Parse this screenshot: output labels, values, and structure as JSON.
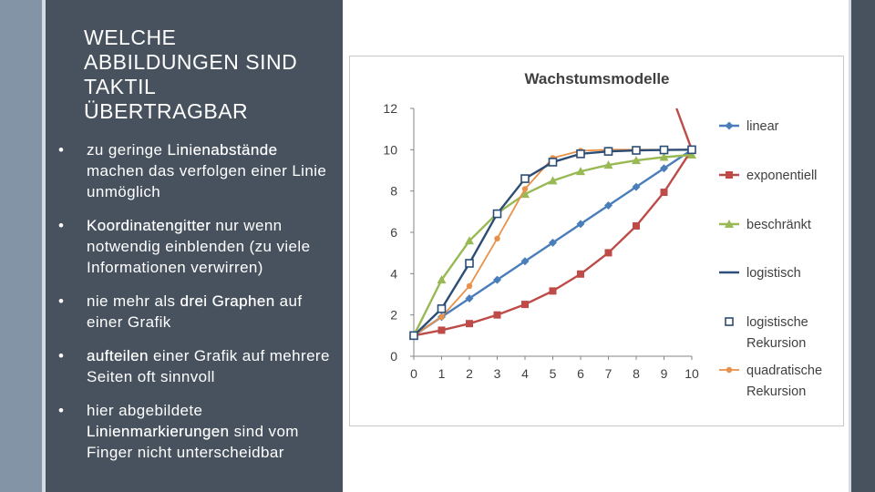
{
  "slide": {
    "title_lines": [
      "WELCHE",
      "ABBILDUNGEN SIND",
      "TAKTIL",
      "ÜBERTRAGBAR"
    ],
    "bullet_symbol": "•",
    "bullets": [
      {
        "pre": "zu geringe ",
        "bold": "Linienabstände",
        "post": " machen das verfolgen einer Linie unmöglich"
      },
      {
        "pre": "",
        "bold": "Koordinatengitter",
        "post": " nur wenn notwendig einblenden (zu viele Informationen verwirren)"
      },
      {
        "pre": "nie mehr als ",
        "bold": "drei Graphen",
        "post": " auf einer Grafik"
      },
      {
        "pre": "",
        "bold": "aufteilen",
        "post": " einer Grafik auf mehrere Seiten oft sinnvoll"
      },
      {
        "pre": "hier abgebildete ",
        "bold": "Linienmarkierungen",
        "post": " sind vom Finger nicht unterscheidbar"
      }
    ]
  },
  "chart_data": {
    "type": "line",
    "title": "Wachstumsmodelle",
    "xlabel": "",
    "ylabel": "",
    "x": [
      0,
      1,
      2,
      3,
      4,
      5,
      6,
      7,
      8,
      9,
      10
    ],
    "xlim": [
      0,
      10
    ],
    "ylim": [
      0,
      12
    ],
    "yticks": [
      0,
      2,
      4,
      6,
      8,
      10,
      12
    ],
    "grid": false,
    "legend": "right",
    "series": [
      {
        "name": "linear",
        "color": "#4a7ebb",
        "marker": "diamond",
        "values": [
          1.0,
          1.9,
          2.8,
          3.7,
          4.6,
          5.5,
          6.4,
          7.3,
          8.2,
          9.1,
          10.0
        ]
      },
      {
        "name": "exponentiell",
        "color": "#be4b48",
        "marker": "square",
        "values": [
          1.0,
          1.26,
          1.58,
          2.0,
          2.51,
          3.16,
          3.98,
          5.01,
          6.31,
          7.94,
          10.0
        ]
      },
      {
        "name": "beschränkt",
        "color": "#98b954",
        "marker": "triangle",
        "values": [
          1.0,
          3.7,
          5.59,
          6.92,
          7.85,
          8.5,
          8.95,
          9.26,
          9.48,
          9.64,
          9.75
        ]
      },
      {
        "name": "logistisch",
        "color": "#2c4d75",
        "marker": "none",
        "values": [
          1.0,
          2.3,
          4.5,
          6.9,
          8.6,
          9.4,
          9.8,
          9.92,
          9.97,
          9.99,
          10.0
        ]
      },
      {
        "name": "logistische Rekursion",
        "color": "#2c4d75",
        "marker": "open-square",
        "values": [
          1.0,
          2.3,
          4.5,
          6.9,
          8.6,
          9.4,
          9.8,
          9.92,
          9.97,
          9.99,
          10.0
        ]
      },
      {
        "name": "quadratische Rekursion",
        "color": "#e8914a",
        "marker": "circle",
        "values": [
          1.0,
          1.9,
          3.4,
          5.7,
          8.1,
          9.6,
          9.95,
          10.0,
          10.0,
          10.0,
          10.0
        ]
      }
    ],
    "exponential_extension": {
      "x": 9.45,
      "y": 12
    }
  }
}
